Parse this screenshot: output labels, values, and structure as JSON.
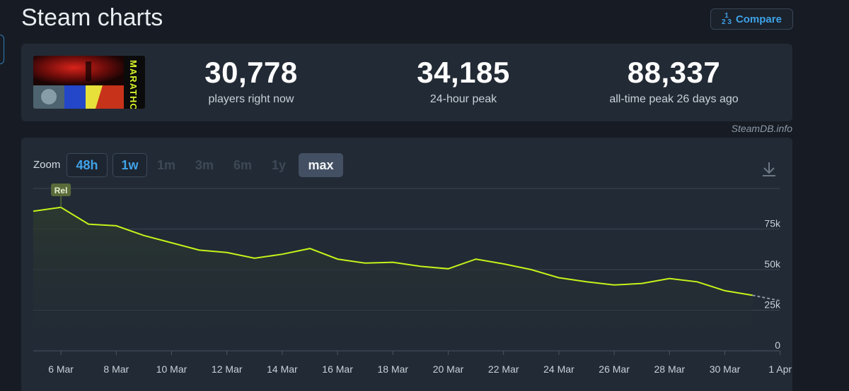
{
  "header": {
    "title": "Steam charts",
    "compare_label": "Compare",
    "compare_icon": "1-2-3-icon"
  },
  "stats": {
    "game_art_text": "MARATHON",
    "current": {
      "value": "30,778",
      "label": "players right now"
    },
    "peak_24h": {
      "value": "34,185",
      "label": "24-hour peak"
    },
    "all_time": {
      "value": "88,337",
      "label": "all-time peak 26 days ago"
    }
  },
  "attribution": "SteamDB.info",
  "zoom": {
    "label": "Zoom",
    "options": [
      {
        "label": "48h",
        "state": "available"
      },
      {
        "label": "1w",
        "state": "available"
      },
      {
        "label": "1m",
        "state": "disabled"
      },
      {
        "label": "3m",
        "state": "disabled"
      },
      {
        "label": "6m",
        "state": "disabled"
      },
      {
        "label": "1y",
        "state": "disabled"
      },
      {
        "label": "max",
        "state": "selected"
      }
    ]
  },
  "chart_data": {
    "type": "line",
    "title": "",
    "xlabel": "",
    "ylabel": "",
    "x_start": "5 Mar",
    "x": [
      "5 Mar",
      "6 Mar",
      "7 Mar",
      "8 Mar",
      "9 Mar",
      "10 Mar",
      "11 Mar",
      "12 Mar",
      "13 Mar",
      "14 Mar",
      "15 Mar",
      "16 Mar",
      "17 Mar",
      "18 Mar",
      "19 Mar",
      "20 Mar",
      "21 Mar",
      "22 Mar",
      "23 Mar",
      "24 Mar",
      "25 Mar",
      "26 Mar",
      "27 Mar",
      "28 Mar",
      "29 Mar",
      "30 Mar",
      "31 Mar",
      "1 Apr"
    ],
    "series": [
      {
        "name": "Players",
        "values": [
          86000,
          88337,
          78000,
          77000,
          71000,
          66500,
          62000,
          60500,
          57000,
          59500,
          63000,
          56500,
          54000,
          54500,
          52000,
          50500,
          56500,
          53500,
          50000,
          45000,
          42500,
          40500,
          41500,
          44500,
          42500,
          37000,
          34185,
          30778
        ]
      }
    ],
    "x_ticks": [
      "6 Mar",
      "8 Mar",
      "10 Mar",
      "12 Mar",
      "14 Mar",
      "16 Mar",
      "18 Mar",
      "20 Mar",
      "22 Mar",
      "24 Mar",
      "26 Mar",
      "28 Mar",
      "30 Mar",
      "1 Apr"
    ],
    "y_ticks": [
      "0",
      "25k",
      "50k",
      "75k"
    ],
    "y_tick_values": [
      0,
      25000,
      50000,
      75000
    ],
    "ylim": [
      0,
      100000
    ],
    "grid": true,
    "annotations": [
      {
        "x": "6 Mar",
        "label": "Rel"
      }
    ],
    "line_color": "#c4f41a",
    "legend": "none"
  }
}
